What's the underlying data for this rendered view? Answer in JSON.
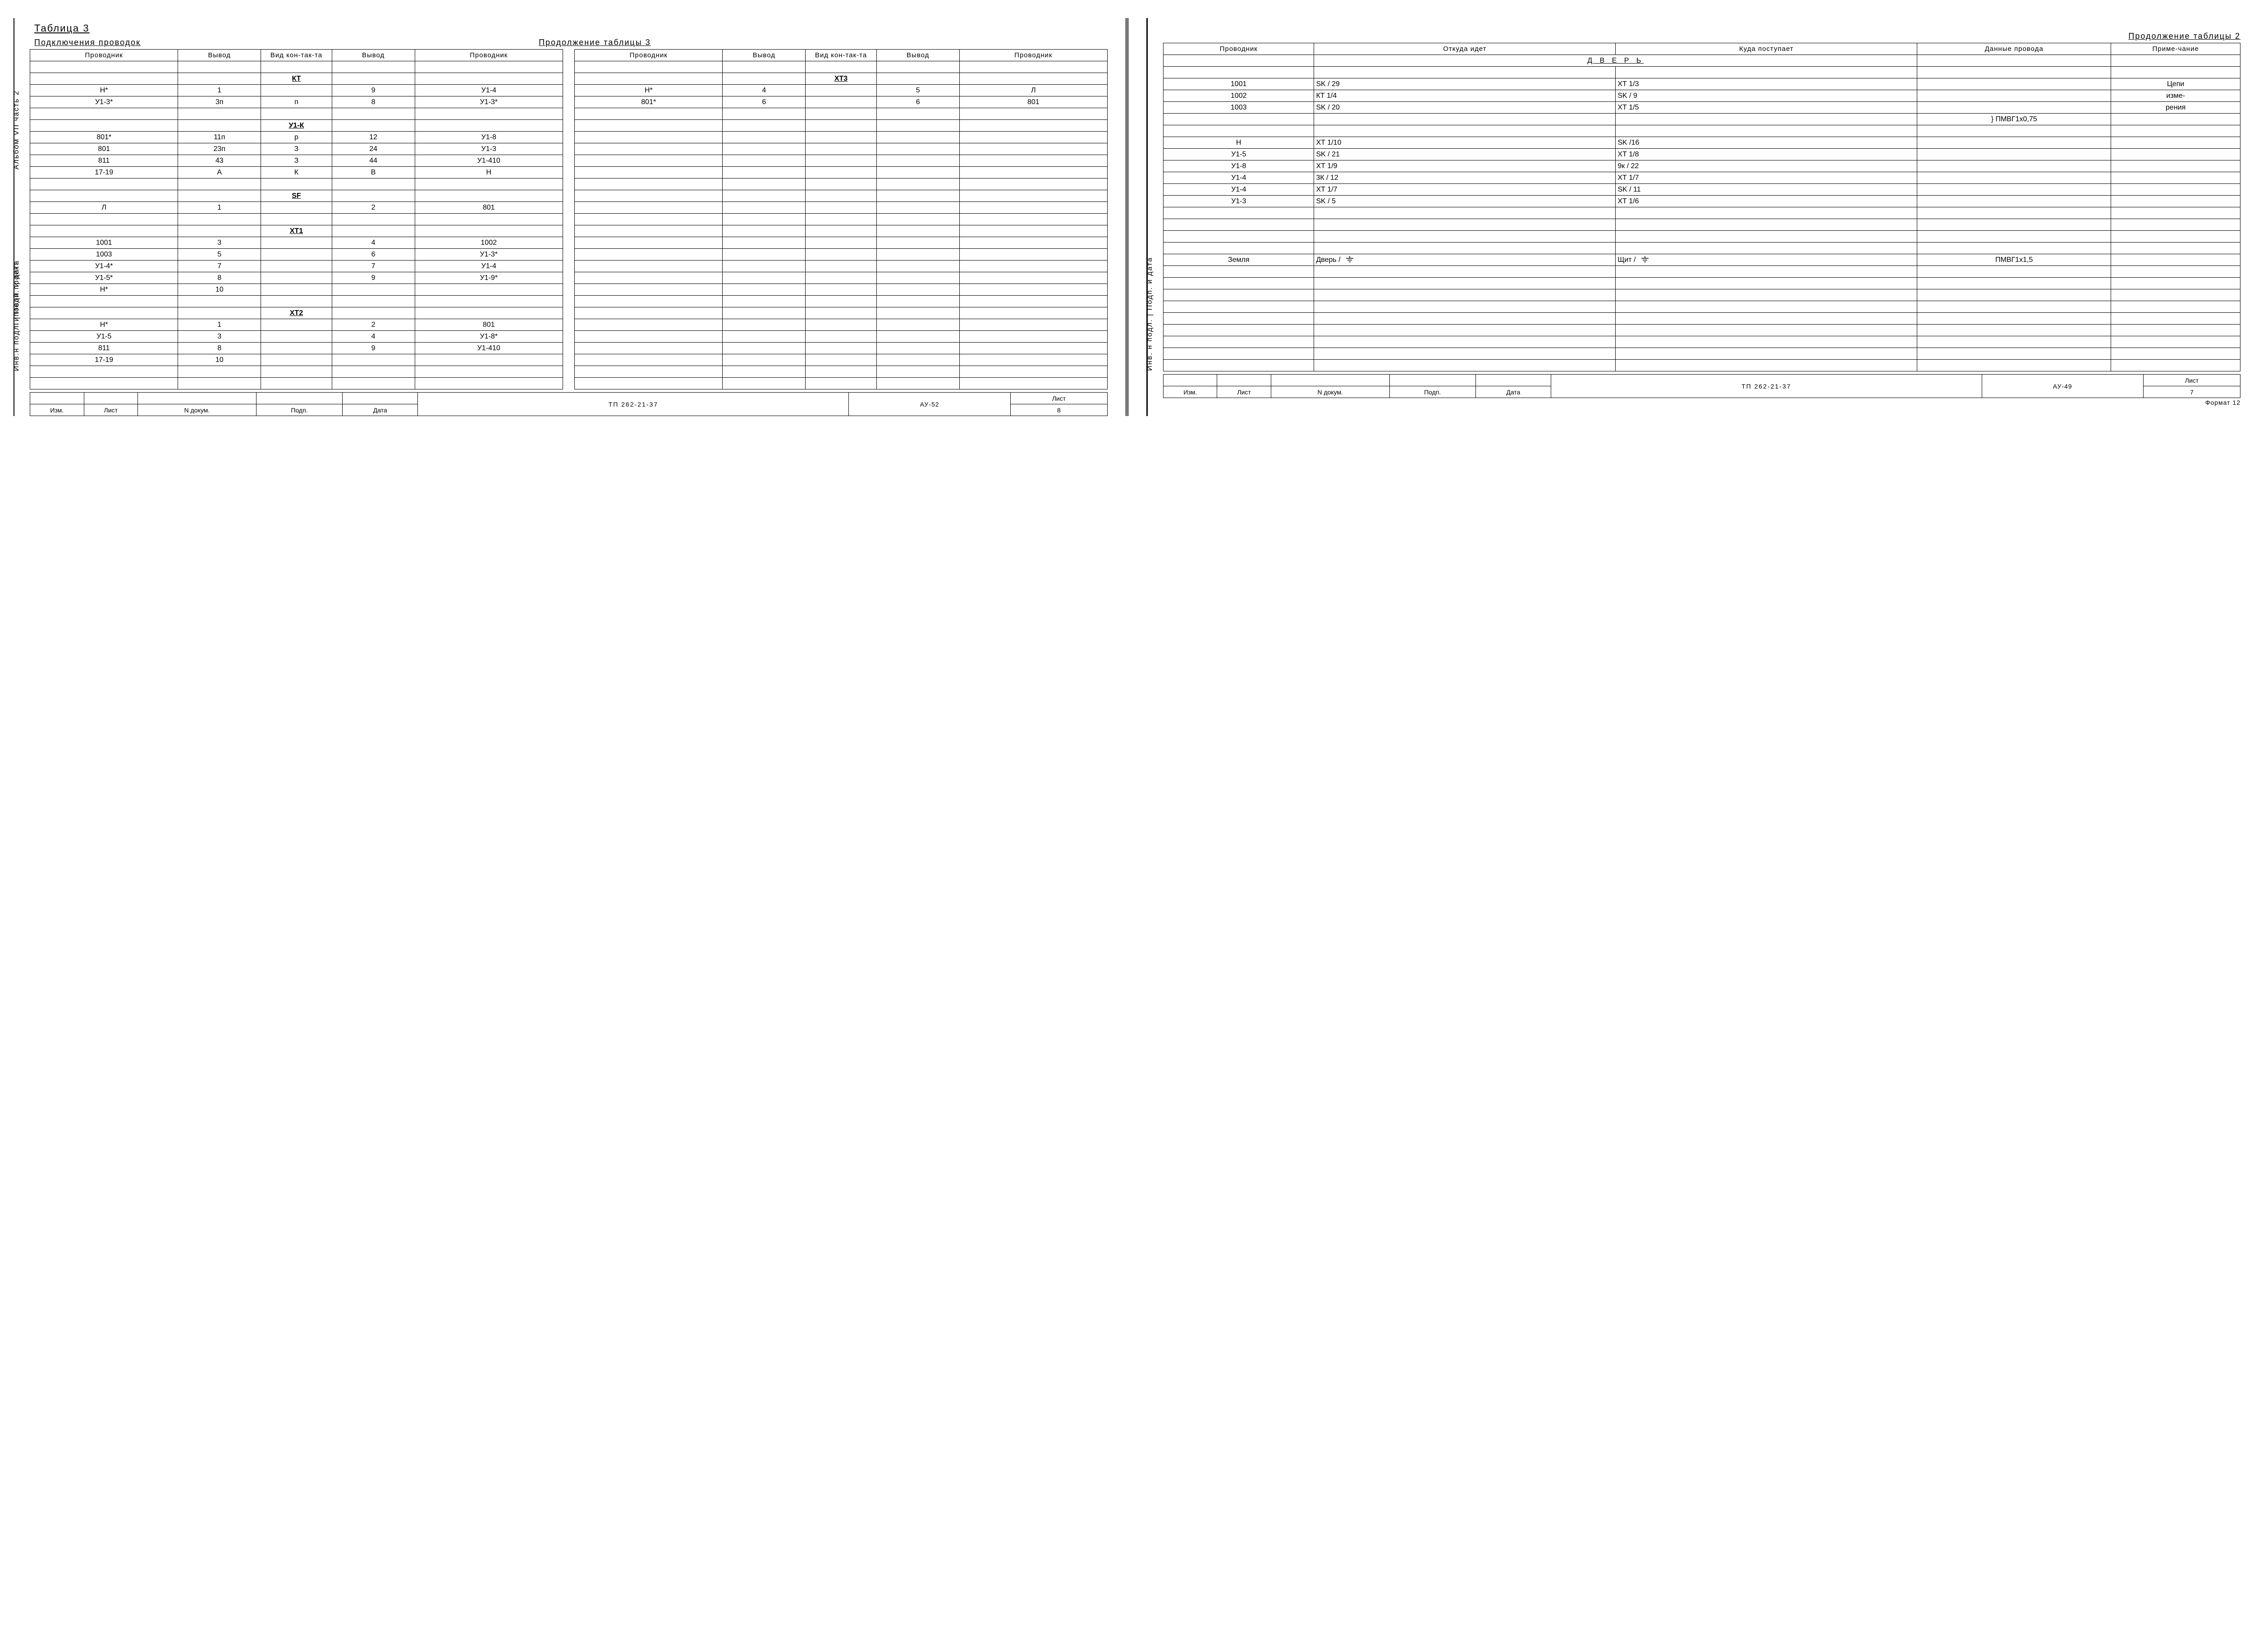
{
  "left_page": {
    "title": "Таблица 3",
    "subtitle_left": "Подключения проводок",
    "subtitle_right": "Продолжение таблицы 3",
    "side_labels": {
      "top": "Альбом VII часть 2",
      "mid": "Типовой проект",
      "bot": "Инв.н подл. | Подп. и дата"
    },
    "headers": [
      "Проводник",
      "Вывод",
      "Вид кон-так-та",
      "Вывод",
      "Проводник"
    ],
    "rows_left": [
      {
        "c": [
          "",
          "",
          "",
          "",
          ""
        ]
      },
      {
        "c": [
          "",
          "",
          "КТ",
          "",
          ""
        ],
        "section": true
      },
      {
        "c": [
          "Н*",
          "1",
          "",
          "9",
          "У1-4"
        ]
      },
      {
        "c": [
          "У1-3*",
          "3п",
          "п",
          "8",
          "У1-3*"
        ]
      },
      {
        "c": [
          "",
          "",
          "",
          "",
          ""
        ]
      },
      {
        "c": [
          "",
          "",
          "У1-К",
          "",
          ""
        ],
        "section": true
      },
      {
        "c": [
          "801*",
          "11п",
          "р",
          "12",
          "У1-8"
        ]
      },
      {
        "c": [
          "801",
          "23п",
          "З",
          "24",
          "У1-3"
        ]
      },
      {
        "c": [
          "811",
          "43",
          "З",
          "44",
          "У1-410"
        ]
      },
      {
        "c": [
          "17-19",
          "А",
          "К",
          "В",
          "Н"
        ]
      },
      {
        "c": [
          "",
          "",
          "",
          "",
          ""
        ]
      },
      {
        "c": [
          "",
          "",
          "SF",
          "",
          ""
        ],
        "section": true
      },
      {
        "c": [
          "Л",
          "1",
          "",
          "2",
          "801"
        ]
      },
      {
        "c": [
          "",
          "",
          "",
          "",
          ""
        ]
      },
      {
        "c": [
          "",
          "",
          "ХТ1",
          "",
          ""
        ],
        "section": true
      },
      {
        "c": [
          "1001",
          "3",
          "",
          "4",
          "1002"
        ]
      },
      {
        "c": [
          "1003",
          "5",
          "",
          "6",
          "У1-3*"
        ]
      },
      {
        "c": [
          "У1-4*",
          "7",
          "",
          "7",
          "У1-4"
        ]
      },
      {
        "c": [
          "У1-5*",
          "8",
          "",
          "9",
          "У1-9*"
        ]
      },
      {
        "c": [
          "Н*",
          "10",
          "",
          "",
          ""
        ]
      },
      {
        "c": [
          "",
          "",
          "",
          "",
          ""
        ]
      },
      {
        "c": [
          "",
          "",
          "ХТ2",
          "",
          ""
        ],
        "section": true
      },
      {
        "c": [
          "Н*",
          "1",
          "",
          "2",
          "801"
        ]
      },
      {
        "c": [
          "У1-5",
          "3",
          "",
          "4",
          "У1-8*"
        ]
      },
      {
        "c": [
          "811",
          "8",
          "",
          "9",
          "У1-410"
        ]
      },
      {
        "c": [
          "17-19",
          "10",
          "",
          "",
          ""
        ]
      },
      {
        "c": [
          "",
          "",
          "",
          "",
          ""
        ]
      },
      {
        "c": [
          "",
          "",
          "",
          "",
          ""
        ]
      }
    ],
    "rows_right": [
      {
        "c": [
          "",
          "",
          "",
          "",
          ""
        ]
      },
      {
        "c": [
          "",
          "",
          "ХТ3",
          "",
          ""
        ],
        "section": true
      },
      {
        "c": [
          "Н*",
          "4",
          "",
          "5",
          "Л"
        ]
      },
      {
        "c": [
          "801*",
          "6",
          "",
          "6",
          "801"
        ]
      },
      {
        "c": [
          "",
          "",
          "",
          "",
          ""
        ]
      },
      {
        "c": [
          "",
          "",
          "",
          "",
          ""
        ]
      },
      {
        "c": [
          "",
          "",
          "",
          "",
          ""
        ]
      },
      {
        "c": [
          "",
          "",
          "",
          "",
          ""
        ]
      },
      {
        "c": [
          "",
          "",
          "",
          "",
          ""
        ]
      },
      {
        "c": [
          "",
          "",
          "",
          "",
          ""
        ]
      },
      {
        "c": [
          "",
          "",
          "",
          "",
          ""
        ]
      },
      {
        "c": [
          "",
          "",
          "",
          "",
          ""
        ]
      },
      {
        "c": [
          "",
          "",
          "",
          "",
          ""
        ]
      },
      {
        "c": [
          "",
          "",
          "",
          "",
          ""
        ]
      },
      {
        "c": [
          "",
          "",
          "",
          "",
          ""
        ]
      },
      {
        "c": [
          "",
          "",
          "",
          "",
          ""
        ]
      },
      {
        "c": [
          "",
          "",
          "",
          "",
          ""
        ]
      },
      {
        "c": [
          "",
          "",
          "",
          "",
          ""
        ]
      },
      {
        "c": [
          "",
          "",
          "",
          "",
          ""
        ]
      },
      {
        "c": [
          "",
          "",
          "",
          "",
          ""
        ]
      },
      {
        "c": [
          "",
          "",
          "",
          "",
          ""
        ]
      },
      {
        "c": [
          "",
          "",
          "",
          "",
          ""
        ]
      },
      {
        "c": [
          "",
          "",
          "",
          "",
          ""
        ]
      },
      {
        "c": [
          "",
          "",
          "",
          "",
          ""
        ]
      },
      {
        "c": [
          "",
          "",
          "",
          "",
          ""
        ]
      },
      {
        "c": [
          "",
          "",
          "",
          "",
          ""
        ]
      },
      {
        "c": [
          "",
          "",
          "",
          "",
          ""
        ]
      },
      {
        "c": [
          "",
          "",
          "",
          "",
          ""
        ]
      }
    ],
    "titleblock": {
      "small_headers": [
        "Изм.",
        "Лист",
        "N докум.",
        "Подп.",
        "Дата"
      ],
      "main": "ТП   262-21-37",
      "sub": "АУ-52",
      "sheet_label": "Лист",
      "sheet_no": "8"
    }
  },
  "right_page": {
    "title_right": "Продолжение таблицы 2",
    "side_labels": {
      "bot": "Инв. н подл. | Подп. и дата"
    },
    "headers": [
      "Проводник",
      "Откуда идет",
      "Куда поступает",
      "Данные провода",
      "Приме-чание"
    ],
    "rows": [
      {
        "c": [
          "",
          "",
          "Д В Е Р Ь",
          "",
          ""
        ],
        "span": "door"
      },
      {
        "c": [
          "",
          "",
          "",
          "",
          ""
        ]
      },
      {
        "c": [
          "1001",
          "SK / 29",
          "ХТ 1/3",
          "",
          "Цепи"
        ]
      },
      {
        "c": [
          "1002",
          "КТ 1/4",
          "SK / 9",
          "",
          "изме-"
        ]
      },
      {
        "c": [
          "1003",
          "SK / 20",
          "ХТ 1/5",
          "",
          "рения"
        ]
      },
      {
        "c": [
          "",
          "",
          "",
          "} ПМВГ1х0,75",
          ""
        ]
      },
      {
        "c": [
          "",
          "",
          "",
          "",
          ""
        ]
      },
      {
        "c": [
          "Н",
          "ХТ 1/10",
          "SK /16",
          "",
          ""
        ]
      },
      {
        "c": [
          "У1-5",
          "SK / 21",
          "ХТ 1/8",
          "",
          ""
        ]
      },
      {
        "c": [
          "У1-8",
          "ХТ 1/9",
          "9к / 22",
          "",
          ""
        ]
      },
      {
        "c": [
          "У1-4",
          "3К / 12",
          "ХТ 1/7",
          "",
          ""
        ]
      },
      {
        "c": [
          "У1-4",
          "ХТ 1/7",
          "SK / 11",
          "",
          ""
        ]
      },
      {
        "c": [
          "У1-3",
          "SK / 5",
          "ХТ 1/6",
          "",
          ""
        ]
      },
      {
        "c": [
          "",
          "",
          "",
          "",
          ""
        ]
      },
      {
        "c": [
          "",
          "",
          "",
          "",
          ""
        ]
      },
      {
        "c": [
          "",
          "",
          "",
          "",
          ""
        ]
      },
      {
        "c": [
          "",
          "",
          "",
          "",
          ""
        ]
      },
      {
        "c": [
          "Земля",
          "Дверь   /  ⏚",
          "Щит   /  ⏚",
          "ПМВГ1х1,5",
          ""
        ],
        "gnd": true
      },
      {
        "c": [
          "",
          "",
          "",
          "",
          ""
        ]
      },
      {
        "c": [
          "",
          "",
          "",
          "",
          ""
        ]
      },
      {
        "c": [
          "",
          "",
          "",
          "",
          ""
        ]
      },
      {
        "c": [
          "",
          "",
          "",
          "",
          ""
        ]
      },
      {
        "c": [
          "",
          "",
          "",
          "",
          ""
        ]
      },
      {
        "c": [
          "",
          "",
          "",
          "",
          ""
        ]
      },
      {
        "c": [
          "",
          "",
          "",
          "",
          ""
        ]
      },
      {
        "c": [
          "",
          "",
          "",
          "",
          ""
        ]
      },
      {
        "c": [
          "",
          "",
          "",
          "",
          ""
        ]
      }
    ],
    "titleblock": {
      "small_headers": [
        "Изм.",
        "Лист",
        "N докум.",
        "Подп.",
        "Дата"
      ],
      "main": "ТП   262-21-37",
      "sub": "АУ-49",
      "sheet_label": "Лист",
      "sheet_no": "7"
    },
    "format_note": "Формат 12"
  },
  "style": {
    "line_color": "#000000",
    "bg": "#ffffff",
    "font_body": 16,
    "font_title": 22
  }
}
